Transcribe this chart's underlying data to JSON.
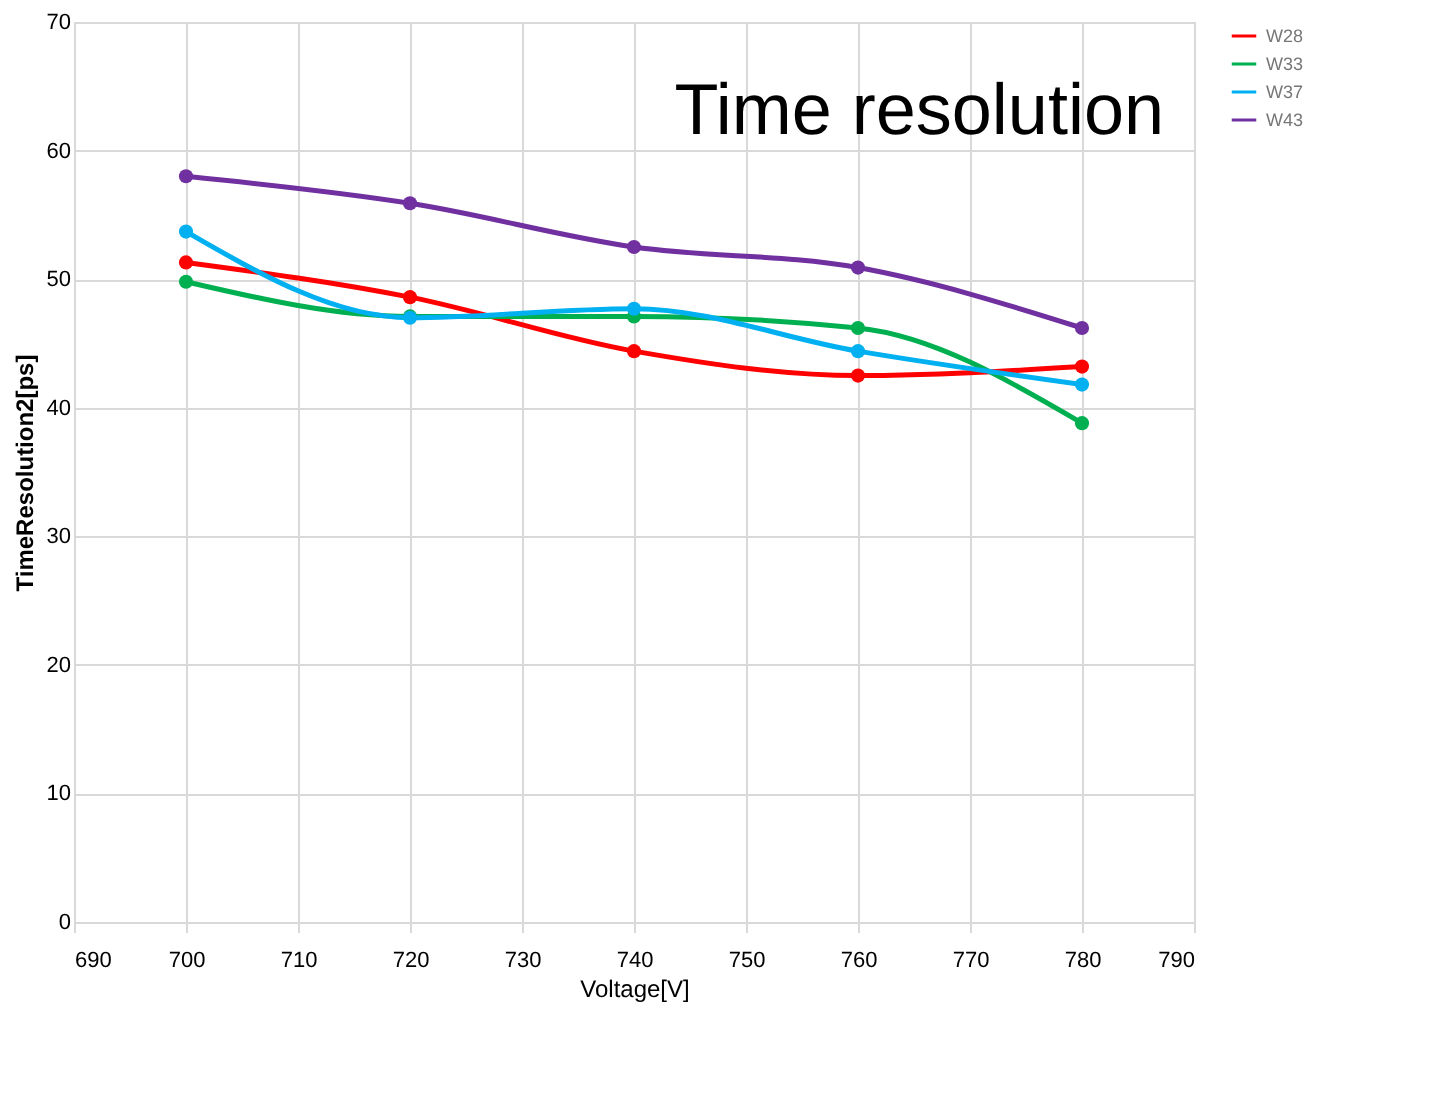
{
  "chart_data": {
    "type": "line",
    "title": "Time resolution",
    "xlabel": "Voltage[V]",
    "ylabel": "TimeResolution2[ps]",
    "x": [
      700,
      720,
      740,
      760,
      780
    ],
    "series": [
      {
        "name": "W28",
        "color": "#ff0000",
        "values": [
          51.3,
          48.6,
          44.4,
          42.5,
          43.2
        ]
      },
      {
        "name": "W33",
        "color": "#00b050",
        "values": [
          49.8,
          47.1,
          47.1,
          46.2,
          38.8
        ]
      },
      {
        "name": "W37",
        "color": "#00b0f0",
        "values": [
          53.7,
          47.0,
          47.7,
          44.4,
          41.8
        ]
      },
      {
        "name": "W43",
        "color": "#7030a0",
        "values": [
          58.0,
          55.9,
          52.5,
          50.9,
          46.2
        ]
      }
    ],
    "xlim": [
      690,
      790
    ],
    "xticks": [
      690,
      700,
      710,
      720,
      730,
      740,
      750,
      760,
      770,
      780,
      790
    ],
    "ylim": [
      0,
      70
    ],
    "yticks": [
      0,
      10,
      20,
      30,
      40,
      50,
      60,
      70
    ],
    "grid": true,
    "legend": "right",
    "marker": "circle",
    "line_style": "solid"
  }
}
